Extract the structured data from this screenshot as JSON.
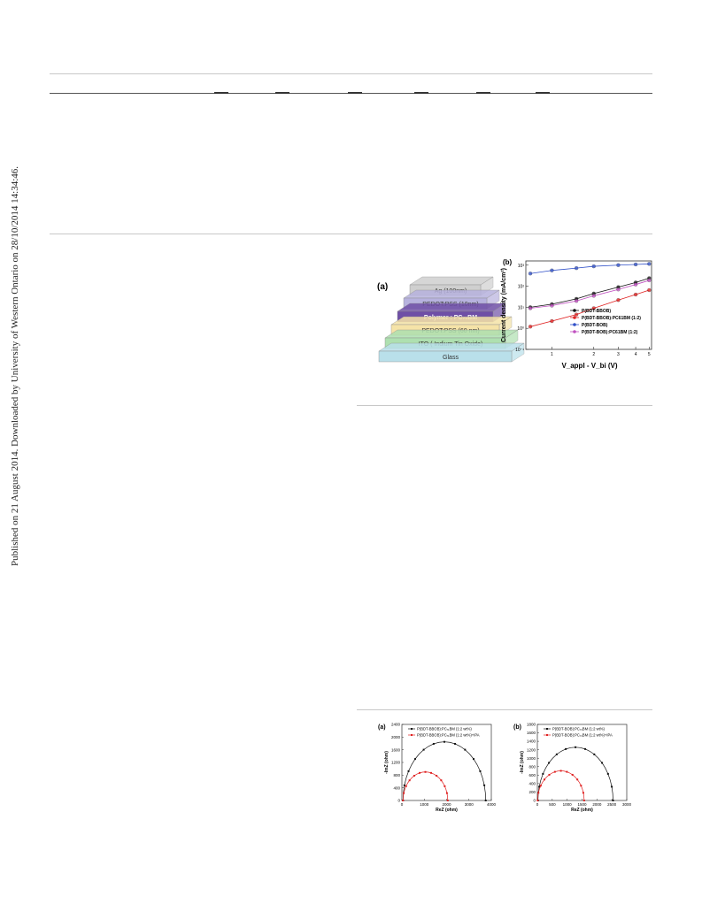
{
  "sidebar_note": "Published on 21 August 2014. Downloaded by University of Western Ontario on 28/10/2014 14:34:46.",
  "figure_device": {
    "panel_a": "(a)",
    "layers": [
      {
        "label": "Ag (100nm)",
        "color": "#cfcfcf"
      },
      {
        "label": "PEDOT:PSS (10nm)",
        "color": "#b7b2de"
      },
      {
        "label": "Polymer : PC₇₁BM",
        "color": "#6f4fa6"
      },
      {
        "label": "PEDOT:PSS (60 nm)",
        "color": "#f5e3a8"
      },
      {
        "label": "ITO ( Indium Tin Oxide)",
        "color": "#aee0b0"
      },
      {
        "label": "Glass",
        "color": "#b9e0ea"
      }
    ]
  },
  "chart_data": [
    {
      "type": "scatter",
      "panel": "(b)",
      "xlabel": "V_appl - V_bi (V)",
      "ylabel": "Current density (mA/cm²)",
      "xscale": "log",
      "yscale": "log",
      "xticks": [
        "1",
        "2",
        "3",
        "4",
        "5"
      ],
      "yticks": [
        "10⁻¹",
        "10⁰",
        "10¹",
        "10²",
        "10³"
      ],
      "legend_position": "lower-right",
      "series": [
        {
          "name": "P(BDT-BBOB)",
          "color": "#111111",
          "x": [
            0.7,
            1,
            1.5,
            2,
            3,
            4,
            5
          ],
          "y": [
            10,
            14,
            25,
            45,
            90,
            150,
            240
          ]
        },
        {
          "name": "P(BDT-BBOB):PC61BM (1:2)",
          "color": "#e02020",
          "x": [
            0.7,
            1,
            1.5,
            2,
            3,
            4,
            5
          ],
          "y": [
            1.2,
            2.2,
            4.5,
            9,
            22,
            40,
            65
          ]
        },
        {
          "name": "P(BDT-BOB)",
          "color": "#3050c8",
          "x": [
            0.7,
            1,
            1.5,
            2,
            3,
            4,
            5
          ],
          "y": [
            400,
            560,
            720,
            880,
            1000,
            1080,
            1150
          ]
        },
        {
          "name": "P(BDT-BOB):PC61BM (1:2)",
          "color": "#c050c0",
          "x": [
            0.7,
            1,
            1.5,
            2,
            3,
            4,
            5
          ],
          "y": [
            9,
            12,
            20,
            35,
            70,
            120,
            190
          ]
        }
      ]
    },
    {
      "type": "line",
      "panel": "(a)",
      "xlabel": "ReZ (ohm)",
      "ylabel": "-ImZ (ohm)",
      "xlim": [
        0,
        4000
      ],
      "ylim": [
        0,
        2400
      ],
      "xticks": [
        "0",
        "1000",
        "2000",
        "3000",
        "4000"
      ],
      "yticks": [
        "0",
        "400",
        "800",
        "1200",
        "1600",
        "2000",
        "2400"
      ],
      "legend_position": "top-left",
      "series": [
        {
          "name": "P(BDT-BBOB):PC₇₁BM (1:2 wt%)",
          "color": "#111111",
          "center": 1900,
          "radius": 1850
        },
        {
          "name": "P(BDT-BBOB):PC₇₁BM (1:2 wt%)+IPA",
          "color": "#e02020",
          "center": 1050,
          "radius": 1000
        }
      ]
    },
    {
      "type": "line",
      "panel": "(b)",
      "xlabel": "ReZ (ohm)",
      "ylabel": "-ImZ (ohm)",
      "xlim": [
        0,
        3000
      ],
      "ylim": [
        0,
        1800
      ],
      "xticks": [
        "0",
        "500",
        "1000",
        "1500",
        "2000",
        "2500",
        "3000"
      ],
      "yticks": [
        "0",
        "200",
        "400",
        "600",
        "800",
        "1000",
        "1200",
        "1400",
        "1600",
        "1800"
      ],
      "legend_position": "top-left",
      "series": [
        {
          "name": "P(BDT-BOB):PC₇₁BM (1:2 wt%)",
          "color": "#111111",
          "center": 1280,
          "radius": 1260
        },
        {
          "name": "P(BDT-BOB):PC₇₁BM (1:2 wt%)+IPA",
          "color": "#e02020",
          "center": 790,
          "radius": 780
        }
      ]
    }
  ]
}
